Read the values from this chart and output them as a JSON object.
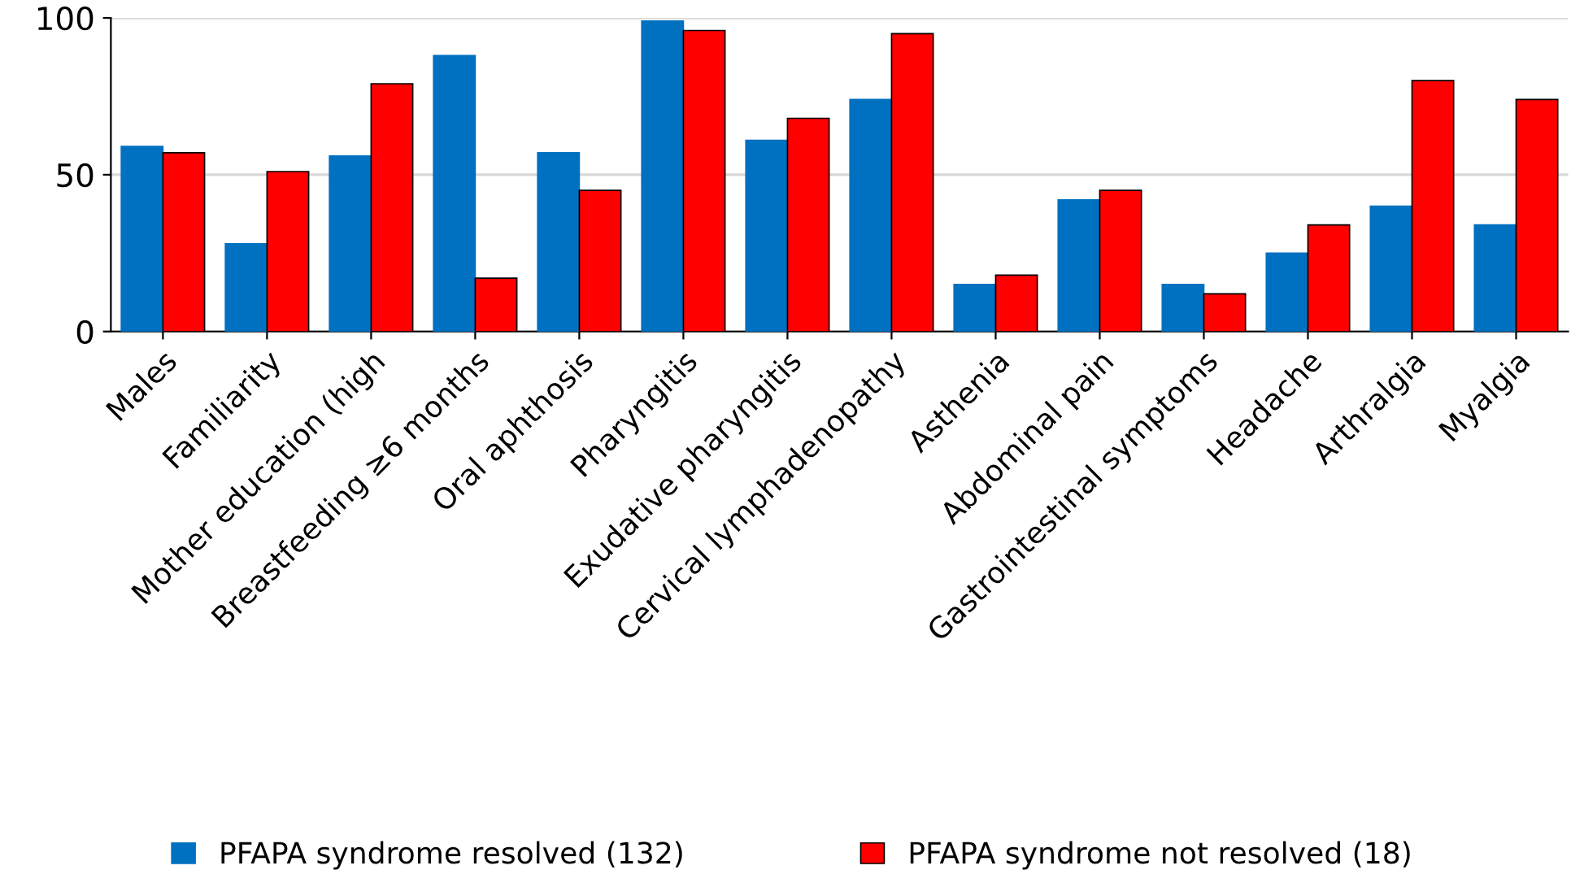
{
  "chart_data": {
    "type": "bar",
    "categories": [
      "Males",
      "Familiarity",
      "Mother education (high",
      "Breastfeeding ≥6 months",
      "Oral aphthosis",
      "Pharyngitis",
      "Exudative pharyngitis",
      "Cervical lymphadenopathy",
      "Asthenia",
      "Abdominal pain",
      "Gastrointestinal symptoms",
      "Headache",
      "Arthralgia",
      "Myalgia"
    ],
    "series": [
      {
        "name": "PFAPA syndrome resolved (132)",
        "color": "#0070c0",
        "values": [
          59,
          28,
          56,
          88,
          57,
          99,
          61,
          74,
          15,
          42,
          15,
          25,
          40,
          34
        ]
      },
      {
        "name": "PFAPA syndrome not resolved (18)",
        "color": "#ff0000",
        "values": [
          57,
          51,
          79,
          17,
          45,
          96,
          68,
          95,
          18,
          45,
          12,
          34,
          80,
          74
        ]
      }
    ],
    "ylim": [
      0,
      100
    ],
    "yticks": [
      0,
      50,
      100
    ],
    "grid": "y",
    "legend": "bottom"
  }
}
